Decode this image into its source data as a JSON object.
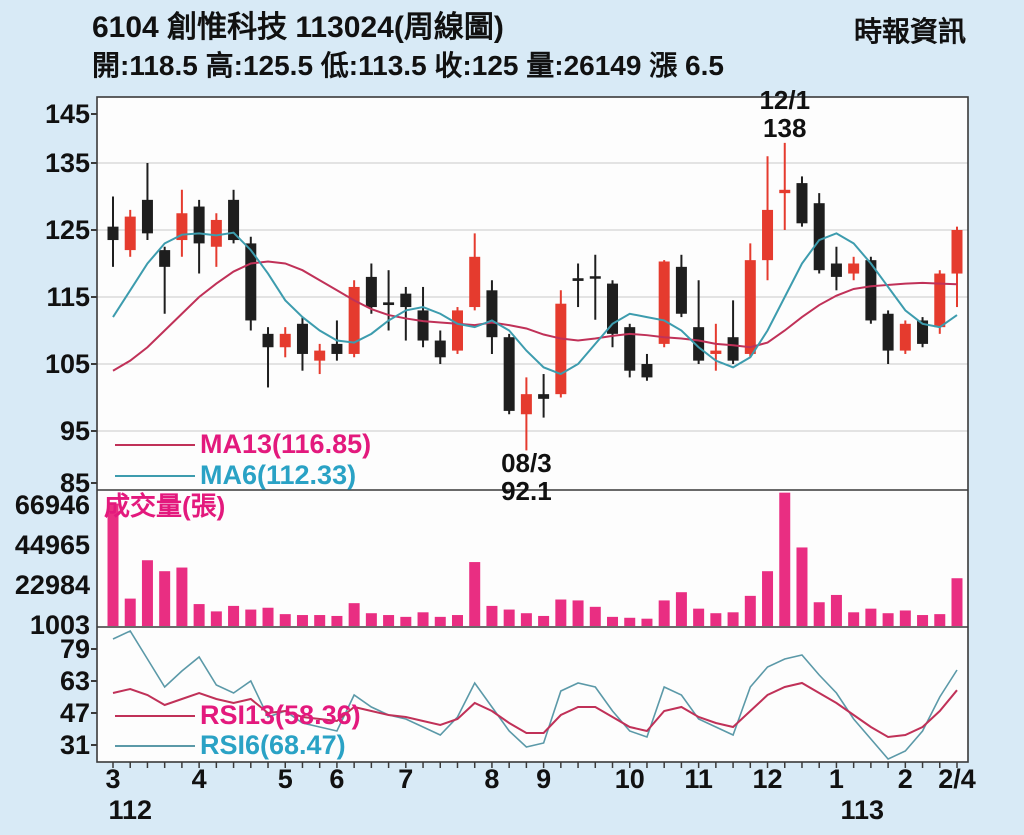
{
  "header": {
    "title": "6104 創惟科技 113024(周線圖)",
    "source": "時報資訊",
    "quote_line": "開:118.5 高:125.5 低:113.5 收:125 量:26149 漲 6.5",
    "quote": {
      "open": "118.5",
      "high": "125.5",
      "low": "113.5",
      "close": "125",
      "volume": "26149",
      "change_label": "漲",
      "change": "6.5"
    }
  },
  "legends": {
    "ma13": "MA13(116.85)",
    "ma6": "MA6(112.33)",
    "volume": "成交量(張)",
    "rsi13": "RSI13(58.36)",
    "rsi6": "RSI6(68.47)"
  },
  "annotations": {
    "high": {
      "date": "12/1",
      "value": "138",
      "candle_index": 39
    },
    "low": {
      "date": "08/3",
      "value": "92.1",
      "candle_index": 24
    }
  },
  "axes": {
    "price_ticks": [
      145,
      135,
      125,
      115,
      105,
      95,
      85
    ],
    "volume_ticks": [
      66946,
      44965,
      22984,
      1003
    ],
    "rsi_ticks": [
      79,
      63,
      47,
      31
    ],
    "months": [
      {
        "label": "3",
        "index": 0
      },
      {
        "label": "4",
        "index": 5
      },
      {
        "label": "5",
        "index": 10
      },
      {
        "label": "6",
        "index": 13
      },
      {
        "label": "7",
        "index": 17
      },
      {
        "label": "8",
        "index": 22
      },
      {
        "label": "9",
        "index": 25
      },
      {
        "label": "10",
        "index": 30
      },
      {
        "label": "11",
        "index": 34
      },
      {
        "label": "12",
        "index": 38
      },
      {
        "label": "1",
        "index": 42
      },
      {
        "label": "2",
        "index": 46
      },
      {
        "label": "2/4",
        "index": 49
      }
    ],
    "years": [
      {
        "label": "112",
        "index": 1
      },
      {
        "label": "113",
        "index": 43.5
      }
    ]
  },
  "colors": {
    "background": "#d8eaf6",
    "panel": "#fdfdfd",
    "grid": "#c9c9c9",
    "border": "#3a3a3a",
    "up_candle": "#e53b2e",
    "down_candle": "#1e1e1e",
    "ma13_line": "#c03158",
    "ma6_line": "#3d9cae",
    "rsi13_line": "#c03158",
    "rsi6_line": "#5b99a8",
    "volume_bar": "#e92e82",
    "magenta_text": "#e3197d",
    "cyan_text": "#2aa2c5",
    "text": "#111111"
  },
  "chart_data": {
    "type": "candlestick",
    "panels": [
      "price+MA",
      "volume",
      "RSI"
    ],
    "period": "weekly",
    "x_range": "ROC 112/3 to 113/2/4",
    "price_axis": {
      "min": 85,
      "max": 145
    },
    "volume_axis_max": 75000,
    "rsi_axis": {
      "min": 31,
      "max": 79
    },
    "candles": [
      [
        125.5,
        130,
        119.5,
        123.5
      ],
      [
        122,
        128,
        121,
        127
      ],
      [
        129.5,
        135,
        123.5,
        124.5
      ],
      [
        122,
        122.5,
        112.5,
        119.5
      ],
      [
        123.5,
        131,
        121,
        127.5
      ],
      [
        128.5,
        129.5,
        118.5,
        123
      ],
      [
        122.5,
        127.5,
        119.5,
        126.5
      ],
      [
        129.5,
        131,
        123,
        123.5
      ],
      [
        123,
        124,
        110,
        111.5
      ],
      [
        109.5,
        110.5,
        101.5,
        107.5
      ],
      [
        107.5,
        110.5,
        106,
        109.5
      ],
      [
        111,
        112,
        104,
        106.5
      ],
      [
        105.5,
        108,
        103.5,
        107
      ],
      [
        108,
        111.5,
        105.5,
        106.5
      ],
      [
        106.5,
        117.5,
        106,
        116.5
      ],
      [
        118,
        120,
        112.5,
        113.5
      ],
      [
        114.2,
        119,
        110,
        113.8
      ],
      [
        115.5,
        116.5,
        108.5,
        113.5
      ],
      [
        113,
        116.5,
        107.5,
        108.5
      ],
      [
        108.5,
        110,
        105,
        106
      ],
      [
        107,
        113.5,
        106.5,
        113
      ],
      [
        113.5,
        124.5,
        113,
        121
      ],
      [
        116,
        117.5,
        106.5,
        109
      ],
      [
        109,
        109.5,
        97.5,
        98
      ],
      [
        97.5,
        103,
        92.1,
        100.5
      ],
      [
        100.5,
        103.5,
        97,
        99.8
      ],
      [
        100.5,
        116,
        100,
        114
      ],
      [
        117.8,
        120,
        113.5,
        117.4
      ],
      [
        118.1,
        121.3,
        111.6,
        117.9
      ],
      [
        117,
        117.5,
        107.5,
        109.5
      ],
      [
        110.5,
        111,
        103,
        104
      ],
      [
        105,
        106.5,
        102.5,
        103
      ],
      [
        108,
        120.5,
        107.5,
        120.3
      ],
      [
        119.5,
        121.3,
        112,
        112.5
      ],
      [
        110.5,
        117.5,
        105,
        105.5
      ],
      [
        106.5,
        111,
        104,
        107
      ],
      [
        109,
        114.5,
        105,
        105.5
      ],
      [
        106.5,
        123,
        106,
        120.5
      ],
      [
        120.5,
        136,
        117.5,
        128
      ],
      [
        130.5,
        138,
        125,
        131
      ],
      [
        132,
        133,
        125.5,
        126
      ],
      [
        129,
        130.5,
        118.5,
        119
      ],
      [
        120,
        122.5,
        116,
        118
      ],
      [
        118.5,
        121,
        117.5,
        120
      ],
      [
        120.5,
        121,
        111,
        111.5
      ],
      [
        112.5,
        113,
        105,
        107
      ],
      [
        107,
        111.5,
        106.5,
        111
      ],
      [
        111.5,
        112,
        107.5,
        108
      ],
      [
        110.5,
        119,
        109.5,
        118.5
      ],
      [
        118.5,
        125.5,
        113.5,
        125
      ]
    ],
    "volumes": [
      67000,
      15000,
      36000,
      30000,
      32000,
      12000,
      8000,
      11000,
      9000,
      10000,
      6500,
      6000,
      6000,
      5500,
      12500,
      7000,
      6000,
      5000,
      7500,
      5000,
      6000,
      35000,
      11000,
      9000,
      7000,
      5500,
      14500,
      14000,
      10500,
      5000,
      4500,
      4000,
      14000,
      18500,
      9500,
      7000,
      7500,
      16500,
      30000,
      73000,
      43000,
      13000,
      17000,
      7500,
      9500,
      7000,
      8500,
      6000,
      6500,
      26149
    ],
    "ma6": [
      112,
      116,
      120,
      123,
      124.3,
      124.5,
      124.2,
      124.6,
      122,
      118.5,
      114.5,
      112,
      110,
      108.5,
      108.2,
      109.5,
      111.5,
      113,
      113.5,
      112.5,
      111,
      110.5,
      111.5,
      110,
      107,
      104.5,
      103.5,
      105,
      108,
      111,
      112.5,
      112,
      111.5,
      110,
      107.5,
      105.5,
      104.5,
      106,
      110,
      115,
      120,
      123.5,
      124.5,
      123,
      120,
      116.5,
      113,
      111,
      110.5,
      112.3
    ],
    "ma13": [
      104,
      105.5,
      107.5,
      110,
      112.5,
      115,
      117,
      118.8,
      120,
      120.3,
      120,
      119,
      117.5,
      116,
      114.5,
      113.2,
      112.3,
      111.8,
      111.4,
      111.2,
      111,
      110.8,
      111.2,
      110.8,
      110.3,
      109.4,
      108.8,
      108.5,
      108.8,
      109.2,
      109.5,
      109.3,
      109,
      108.8,
      108.5,
      108,
      107.8,
      107.5,
      108.2,
      110,
      112,
      113.8,
      115.2,
      116.2,
      116.6,
      116.8,
      117,
      117.1,
      117,
      116.9
    ],
    "rsi6": [
      84,
      88,
      74,
      60,
      68,
      75,
      61,
      57,
      63,
      45,
      48,
      42,
      40,
      38,
      56,
      50,
      46,
      44,
      40,
      36,
      45,
      62,
      50,
      38,
      30,
      32,
      58,
      62,
      60,
      48,
      38,
      35,
      60,
      56,
      44,
      40,
      36,
      60,
      70,
      74,
      76,
      66,
      57,
      44,
      34,
      24,
      28,
      38,
      55,
      68.5
    ],
    "rsi13": [
      57,
      59,
      56,
      51,
      54,
      57,
      54,
      52,
      54,
      47,
      48,
      45,
      44,
      43,
      50,
      48,
      46,
      45,
      43,
      41,
      44,
      52,
      48,
      42,
      37,
      37,
      46,
      50,
      50,
      45,
      40,
      38,
      48,
      50,
      45,
      42,
      40,
      48,
      56,
      60,
      62,
      57,
      52,
      46,
      40,
      35,
      36,
      40,
      48,
      58.4
    ]
  }
}
